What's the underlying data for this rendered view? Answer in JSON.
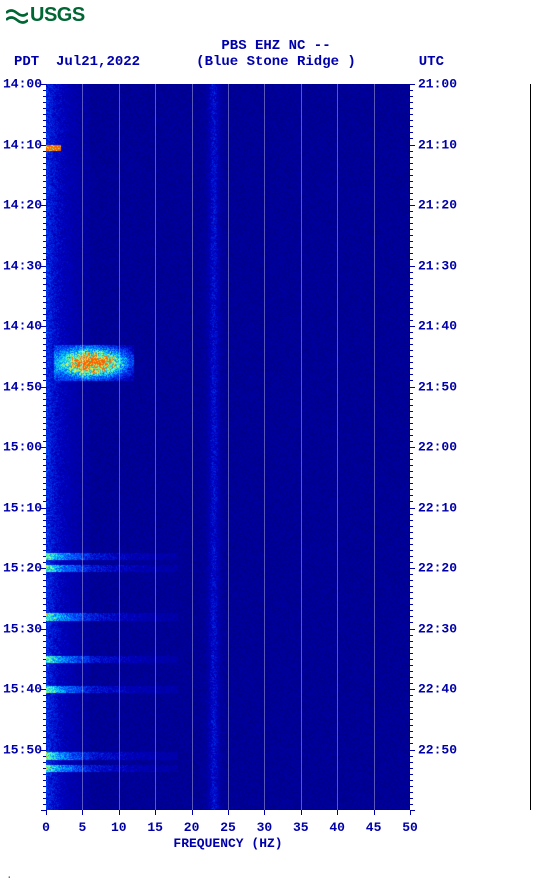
{
  "logo": {
    "text": "USGS",
    "color": "#006633"
  },
  "header": {
    "station_line": "PBS EHZ NC --",
    "location_line": "(Blue Stone Ridge )",
    "left_tz": "PDT",
    "date": "Jul21,2022",
    "right_tz": "UTC"
  },
  "chart": {
    "type": "spectrogram",
    "background_color": "#ffffff",
    "plot_bg": "#00008b",
    "time_axis_left": {
      "start": "14:00",
      "end": "16:00",
      "major_step_min": 10,
      "labels": [
        "14:00",
        "14:10",
        "14:20",
        "14:30",
        "14:40",
        "14:50",
        "15:00",
        "15:10",
        "15:20",
        "15:30",
        "15:40",
        "15:50"
      ]
    },
    "time_axis_right": {
      "start": "21:00",
      "end": "23:00",
      "labels": [
        "21:00",
        "21:10",
        "21:20",
        "21:30",
        "21:40",
        "21:50",
        "22:00",
        "22:10",
        "22:20",
        "22:30",
        "22:40",
        "22:50"
      ]
    },
    "x_axis": {
      "label": "FREQUENCY (HZ)",
      "min": 0,
      "max": 50,
      "tick_step": 5,
      "ticks": [
        0,
        5,
        10,
        15,
        20,
        25,
        30,
        35,
        40,
        45,
        50
      ],
      "grid_color": "rgba(255,255,255,0.35)"
    },
    "colormap": {
      "stops": [
        {
          "v": 0.0,
          "c": "#00006b"
        },
        {
          "v": 0.3,
          "c": "#0000c0"
        },
        {
          "v": 0.5,
          "c": "#0050ff"
        },
        {
          "v": 0.65,
          "c": "#00c0ff"
        },
        {
          "v": 0.8,
          "c": "#60ffb0"
        },
        {
          "v": 0.9,
          "c": "#f0ff40"
        },
        {
          "v": 1.0,
          "c": "#ff6000"
        }
      ]
    },
    "features": [
      {
        "type": "broadband_burst",
        "t_min": 43,
        "t_max": 49,
        "f_min": 1,
        "f_max": 12,
        "peak_intensity": 1.0,
        "note": "bright yellow-cyan cluster ~14:43-14:49, 1-12 Hz"
      },
      {
        "type": "speckle",
        "t_min": 10,
        "t_max": 11,
        "f_min": 0,
        "f_max": 2,
        "peak_intensity": 0.95
      },
      {
        "type": "vertical_streak",
        "f": 23,
        "t_min": 0,
        "t_max": 120,
        "intensity": 0.5
      },
      {
        "type": "low_freq_band",
        "f_min": 0,
        "f_max": 6,
        "t_min": 0,
        "t_max": 120,
        "intensity": 0.55
      },
      {
        "type": "horizontal_bands",
        "t_values": [
          78,
          80,
          88,
          95,
          100,
          111,
          113
        ],
        "f_min": 0,
        "f_max": 18,
        "intensity": 0.5
      }
    ],
    "noise_floor_intensity": 0.15,
    "total_minutes": 120,
    "tick_label_color": "#0000aa",
    "tick_fontsize": 13,
    "title_fontsize": 14
  },
  "bottom_mark": "."
}
